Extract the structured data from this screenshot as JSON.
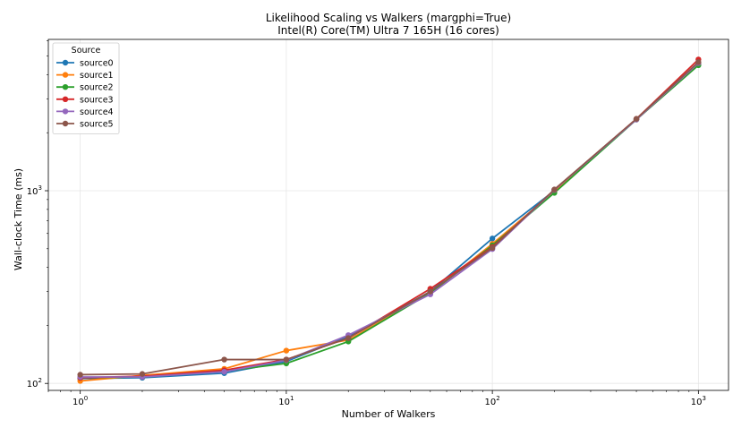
{
  "chart_data": {
    "type": "line",
    "title": "Likelihood Scaling vs Walkers (margphi=True)",
    "subtitle": "Intel(R) Core(TM) Ultra 7 165H (16 cores)",
    "xlabel": "Number of Walkers",
    "ylabel": "Wall-clock Time (ms)",
    "xscale": "log",
    "yscale": "log",
    "xlim": [
      0.7,
      1400
    ],
    "ylim": [
      92,
      6100
    ],
    "grid": true,
    "legend": {
      "title": "Source",
      "placement": "top-left"
    },
    "x_ticks": [
      {
        "value": 1,
        "base": "10",
        "exp": "0"
      },
      {
        "value": 10,
        "base": "10",
        "exp": "1"
      },
      {
        "value": 100,
        "base": "10",
        "exp": "2"
      },
      {
        "value": 1000,
        "base": "10",
        "exp": "3"
      }
    ],
    "y_ticks": [
      {
        "value": 100,
        "base": "10",
        "exp": "2"
      },
      {
        "value": 1000,
        "base": "10",
        "exp": "3"
      }
    ],
    "x": [
      1,
      2,
      5,
      10,
      20,
      50,
      100,
      200,
      500,
      1000
    ],
    "series": [
      {
        "name": "source0",
        "color": "#1f77b4",
        "values": [
          106,
          107,
          113,
          130,
          175,
          300,
          565,
          1000,
          2350,
          4550
        ]
      },
      {
        "name": "source1",
        "color": "#ff7f0e",
        "values": [
          103,
          110,
          119,
          148,
          168,
          295,
          530,
          990,
          2350,
          4600
        ]
      },
      {
        "name": "source2",
        "color": "#2ca02c",
        "values": [
          107,
          108,
          116,
          127,
          165,
          295,
          520,
          975,
          2340,
          4480
        ]
      },
      {
        "name": "source3",
        "color": "#d62728",
        "values": [
          107,
          109,
          117,
          133,
          172,
          310,
          510,
          1010,
          2360,
          4800
        ]
      },
      {
        "name": "source4",
        "color": "#9467bd",
        "values": [
          108,
          108,
          115,
          132,
          178,
          290,
          498,
          1010,
          2340,
          4600
        ]
      },
      {
        "name": "source5",
        "color": "#8c564b",
        "values": [
          111,
          112,
          133,
          133,
          172,
          300,
          505,
          1015,
          2360,
          4650
        ]
      }
    ]
  }
}
